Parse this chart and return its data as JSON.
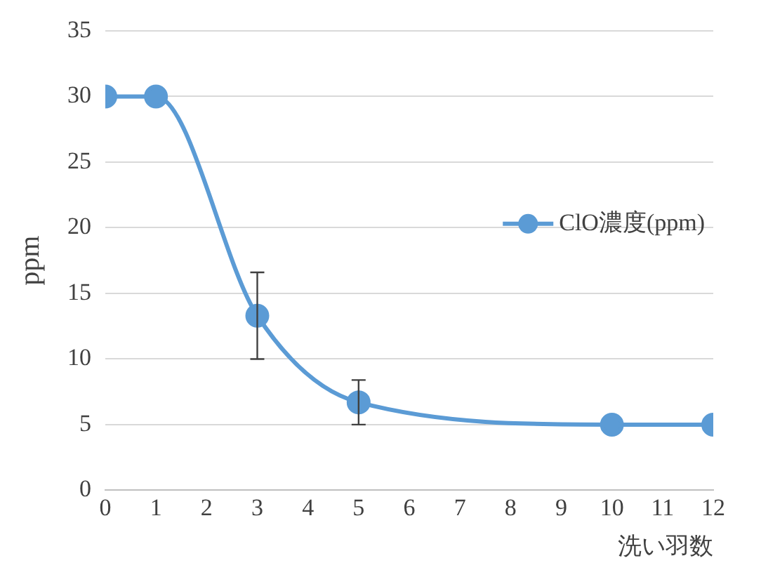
{
  "chart_data": {
    "type": "line",
    "xlabel": "洗い羽数",
    "ylabel": "ppm",
    "x": [
      0,
      1,
      3,
      5,
      10,
      12
    ],
    "series": [
      {
        "name": "ClO濃度(ppm)",
        "color": "#5b9bd5",
        "values": [
          30,
          30,
          13.3,
          6.7,
          5,
          5
        ],
        "errors": [
          null,
          null,
          3.3,
          1.7,
          null,
          null
        ]
      }
    ],
    "xlim": [
      0,
      12
    ],
    "xticks": [
      0,
      1,
      2,
      3,
      4,
      5,
      6,
      7,
      8,
      9,
      10,
      11,
      12
    ],
    "ylim": [
      0,
      35
    ],
    "yticks": [
      0,
      5,
      10,
      15,
      20,
      25,
      30,
      35
    ],
    "grid": "y",
    "legend": "right",
    "marker": "circle",
    "line_style": "solid"
  }
}
